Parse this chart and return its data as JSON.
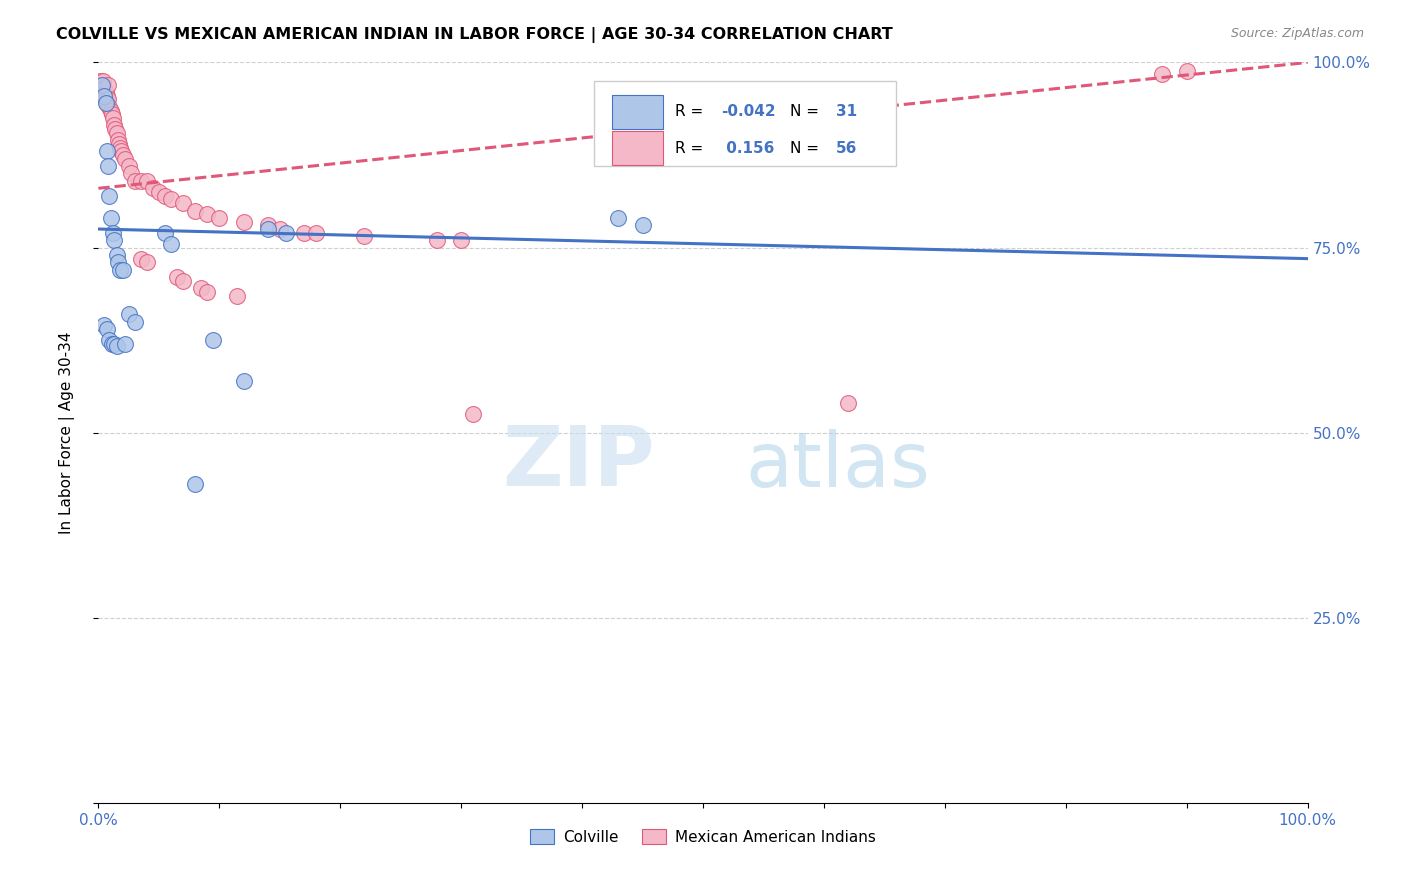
{
  "title": "COLVILLE VS MEXICAN AMERICAN INDIAN IN LABOR FORCE | AGE 30-34 CORRELATION CHART",
  "source": "Source: ZipAtlas.com",
  "ylabel": "In Labor Force | Age 30-34",
  "colville_R": -0.042,
  "colville_N": 31,
  "mexican_R": 0.156,
  "mexican_N": 56,
  "colville_color": "#aec6e8",
  "mexican_color": "#f4b8c8",
  "trendline_colville_color": "#4472c4",
  "trendline_mexican_color": "#e05878",
  "legend_label_colville": "Colville",
  "legend_label_mexican": "Mexican American Indians",
  "watermark": "ZIPatlas",
  "colville_points": [
    [
      0.003,
      0.97
    ],
    [
      0.005,
      0.955
    ],
    [
      0.006,
      0.945
    ],
    [
      0.007,
      0.88
    ],
    [
      0.008,
      0.86
    ],
    [
      0.009,
      0.82
    ],
    [
      0.01,
      0.79
    ],
    [
      0.012,
      0.77
    ],
    [
      0.013,
      0.76
    ],
    [
      0.015,
      0.74
    ],
    [
      0.016,
      0.73
    ],
    [
      0.018,
      0.72
    ],
    [
      0.02,
      0.72
    ],
    [
      0.025,
      0.66
    ],
    [
      0.03,
      0.65
    ],
    [
      0.005,
      0.645
    ],
    [
      0.007,
      0.64
    ],
    [
      0.009,
      0.625
    ],
    [
      0.011,
      0.62
    ],
    [
      0.013,
      0.62
    ],
    [
      0.015,
      0.617
    ],
    [
      0.022,
      0.62
    ],
    [
      0.055,
      0.77
    ],
    [
      0.06,
      0.755
    ],
    [
      0.14,
      0.775
    ],
    [
      0.155,
      0.77
    ],
    [
      0.43,
      0.79
    ],
    [
      0.45,
      0.78
    ],
    [
      0.095,
      0.625
    ],
    [
      0.12,
      0.57
    ],
    [
      0.08,
      0.43
    ]
  ],
  "mexican_points": [
    [
      0.001,
      0.975
    ],
    [
      0.002,
      0.97
    ],
    [
      0.003,
      0.965
    ],
    [
      0.004,
      0.975
    ],
    [
      0.005,
      0.965
    ],
    [
      0.005,
      0.955
    ],
    [
      0.006,
      0.96
    ],
    [
      0.007,
      0.955
    ],
    [
      0.007,
      0.945
    ],
    [
      0.008,
      0.97
    ],
    [
      0.008,
      0.95
    ],
    [
      0.009,
      0.94
    ],
    [
      0.01,
      0.935
    ],
    [
      0.011,
      0.93
    ],
    [
      0.012,
      0.925
    ],
    [
      0.013,
      0.915
    ],
    [
      0.014,
      0.91
    ],
    [
      0.015,
      0.905
    ],
    [
      0.016,
      0.895
    ],
    [
      0.017,
      0.89
    ],
    [
      0.018,
      0.885
    ],
    [
      0.019,
      0.88
    ],
    [
      0.02,
      0.875
    ],
    [
      0.022,
      0.87
    ],
    [
      0.025,
      0.86
    ],
    [
      0.027,
      0.85
    ],
    [
      0.03,
      0.84
    ],
    [
      0.035,
      0.84
    ],
    [
      0.04,
      0.84
    ],
    [
      0.045,
      0.83
    ],
    [
      0.05,
      0.825
    ],
    [
      0.055,
      0.82
    ],
    [
      0.06,
      0.815
    ],
    [
      0.07,
      0.81
    ],
    [
      0.08,
      0.8
    ],
    [
      0.09,
      0.795
    ],
    [
      0.1,
      0.79
    ],
    [
      0.12,
      0.785
    ],
    [
      0.14,
      0.78
    ],
    [
      0.15,
      0.775
    ],
    [
      0.17,
      0.77
    ],
    [
      0.18,
      0.77
    ],
    [
      0.22,
      0.765
    ],
    [
      0.28,
      0.76
    ],
    [
      0.3,
      0.76
    ],
    [
      0.035,
      0.735
    ],
    [
      0.04,
      0.73
    ],
    [
      0.065,
      0.71
    ],
    [
      0.07,
      0.705
    ],
    [
      0.085,
      0.695
    ],
    [
      0.09,
      0.69
    ],
    [
      0.115,
      0.685
    ],
    [
      0.31,
      0.525
    ],
    [
      0.62,
      0.54
    ],
    [
      0.88,
      0.985
    ],
    [
      0.9,
      0.988
    ]
  ],
  "trendline_colville": [
    [
      0.0,
      0.775
    ],
    [
      1.0,
      0.735
    ]
  ],
  "trendline_mexican": [
    [
      0.0,
      0.83
    ],
    [
      1.0,
      1.0
    ]
  ],
  "xlim": [
    0.0,
    1.0
  ],
  "ylim": [
    0.0,
    1.0
  ],
  "x_ticks": [
    0.0,
    0.1,
    0.2,
    0.3,
    0.4,
    0.5,
    0.6,
    0.7,
    0.8,
    0.9,
    1.0
  ],
  "y_ticks": [
    0.0,
    0.25,
    0.5,
    0.75,
    1.0
  ],
  "x_tick_labels": [
    "0.0%",
    "",
    "",
    "",
    "",
    "",
    "",
    "",
    "",
    "",
    "100.0%"
  ],
  "y_tick_labels_right": [
    "",
    "25.0%",
    "50.0%",
    "75.0%",
    "100.0%"
  ],
  "tick_color": "#4472c4",
  "grid_color": "#d0d0d0",
  "background_color": "#ffffff"
}
